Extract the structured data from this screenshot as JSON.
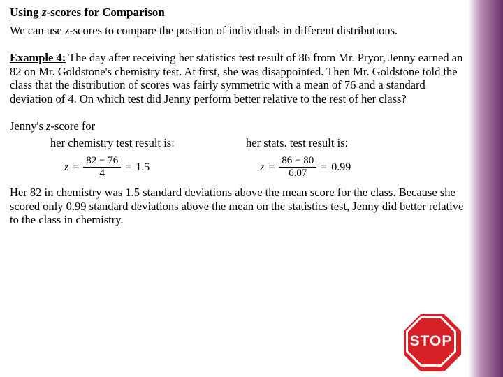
{
  "heading_prefix": "Using ",
  "heading_z": "z",
  "heading_suffix": "-scores for Comparison",
  "intro_prefix": "We can use ",
  "intro_z": "z",
  "intro_suffix": "-scores to compare the position of individuals in different distributions.",
  "example_label": "Example 4:",
  "example_body": " The day after receiving her statistics test result of 86 from Mr. Pryor, Jenny earned an 82 on Mr. Goldstone's chemistry test.  At first, she was disappointed. Then Mr. Goldstone told the class that the distribution of scores was fairly symmetric with a mean of 76 and a standard deviation of 4. On which test did Jenny perform better relative to the rest of her class?",
  "jenny_prefix": "Jenny's ",
  "jenny_z": "z",
  "jenny_suffix": "-score for",
  "col_left_label": "her chemistry test result is:",
  "col_right_label": "her stats. test result is:",
  "chem": {
    "z_var": "z",
    "numerator": "82 − 76",
    "denominator": "4",
    "result": "1.5"
  },
  "stats": {
    "z_var": "z",
    "numerator": "86 − 80",
    "denominator": "6.07",
    "result": "0.99"
  },
  "conclusion": "Her 82 in chemistry was 1.5 standard deviations above the mean score for the class. Because she scored only 0.99 standard deviations above the mean on the statistics test, Jenny did better relative to the class in chemistry.",
  "stop_label": "STOP",
  "colors": {
    "stop_red": "#d82027",
    "gradient_light": "#b98fb5",
    "gradient_dark": "#6a2f68",
    "background": "#ffffff",
    "text": "#000000"
  }
}
